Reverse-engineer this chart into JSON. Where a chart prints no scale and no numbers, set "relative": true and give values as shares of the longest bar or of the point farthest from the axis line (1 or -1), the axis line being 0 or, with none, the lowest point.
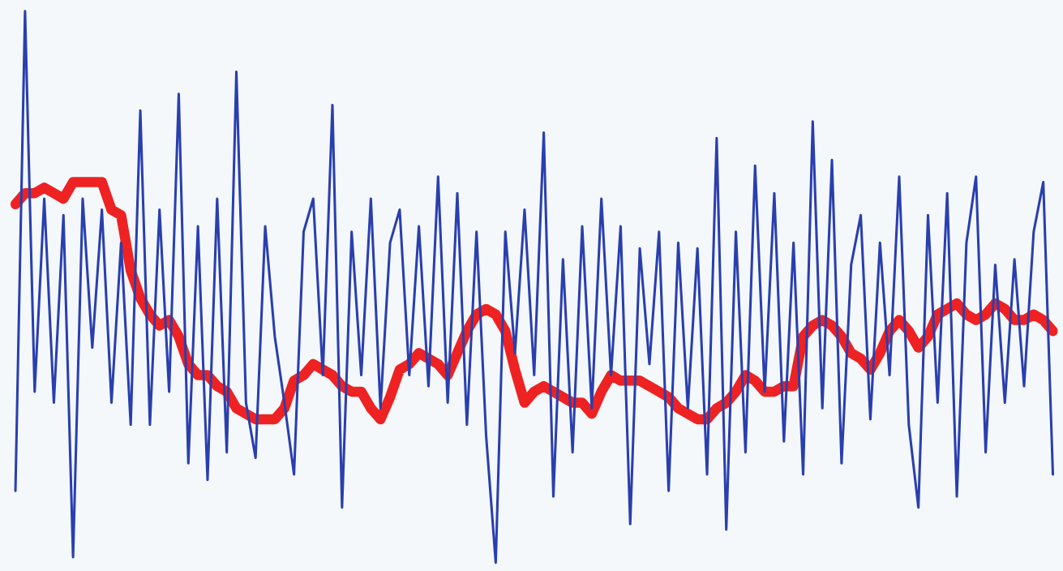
{
  "chart_data": {
    "type": "line",
    "relative": true,
    "legend": false,
    "grid": false,
    "marker": "none",
    "line_style": "solid",
    "categories": [
      null,
      null,
      null,
      null,
      null,
      null,
      null,
      null,
      null,
      null,
      null,
      null,
      null,
      null,
      null,
      null,
      null,
      null,
      null,
      null,
      null,
      null,
      null,
      null,
      null,
      null,
      null,
      null,
      null,
      null,
      null,
      null,
      null,
      null,
      null,
      null,
      null,
      null,
      null,
      null,
      null,
      null,
      null,
      null,
      null,
      null,
      null,
      null,
      null,
      null,
      null,
      null,
      null,
      null,
      null,
      null,
      null,
      null,
      null,
      null,
      null,
      null,
      null,
      null,
      null,
      null,
      null,
      null,
      null,
      null,
      null,
      null,
      null,
      null,
      null,
      null,
      null,
      null,
      null,
      null,
      null,
      null,
      null,
      null,
      null,
      null,
      null,
      null,
      null,
      null,
      null,
      null,
      null,
      null,
      null,
      null,
      null,
      null,
      null,
      null,
      null,
      null,
      null,
      null,
      null,
      null,
      null,
      null,
      null
    ],
    "series": [
      {
        "color": "#2a3fae",
        "values": [
          0.13,
          1.0,
          0.31,
          0.66,
          0.29,
          0.63,
          0.01,
          0.66,
          0.39,
          0.64,
          0.29,
          0.58,
          0.25,
          0.82,
          0.25,
          0.64,
          0.31,
          0.85,
          0.18,
          0.61,
          0.15,
          0.66,
          0.2,
          0.89,
          0.29,
          0.19,
          0.61,
          0.41,
          0.29,
          0.16,
          0.6,
          0.66,
          0.34,
          0.83,
          0.1,
          0.6,
          0.34,
          0.66,
          0.28,
          0.58,
          0.64,
          0.34,
          0.61,
          0.32,
          0.7,
          0.29,
          0.67,
          0.25,
          0.6,
          0.23,
          0.0,
          0.6,
          0.38,
          0.64,
          0.34,
          0.78,
          0.12,
          0.55,
          0.2,
          0.61,
          0.28,
          0.66,
          0.34,
          0.61,
          0.07,
          0.57,
          0.36,
          0.6,
          0.13,
          0.58,
          0.28,
          0.57,
          0.16,
          0.77,
          0.06,
          0.6,
          0.2,
          0.72,
          0.31,
          0.67,
          0.22,
          0.58,
          0.16,
          0.8,
          0.28,
          0.73,
          0.18,
          0.54,
          0.63,
          0.26,
          0.58,
          0.34,
          0.7,
          0.25,
          0.1,
          0.63,
          0.29,
          0.67,
          0.12,
          0.58,
          0.7,
          0.2,
          0.54,
          0.29,
          0.55,
          0.32,
          0.6,
          0.69,
          0.16
        ]
      },
      {
        "color": "#ee2222",
        "values": [
          0.65,
          0.67,
          0.67,
          0.68,
          0.67,
          0.66,
          0.69,
          0.69,
          0.69,
          0.69,
          0.64,
          0.63,
          0.53,
          0.48,
          0.45,
          0.43,
          0.44,
          0.41,
          0.36,
          0.34,
          0.34,
          0.32,
          0.31,
          0.28,
          0.27,
          0.26,
          0.26,
          0.26,
          0.28,
          0.33,
          0.34,
          0.36,
          0.35,
          0.34,
          0.32,
          0.31,
          0.31,
          0.28,
          0.26,
          0.3,
          0.35,
          0.36,
          0.38,
          0.37,
          0.36,
          0.34,
          0.38,
          0.42,
          0.45,
          0.46,
          0.45,
          0.42,
          0.35,
          0.29,
          0.31,
          0.32,
          0.31,
          0.3,
          0.29,
          0.29,
          0.27,
          0.31,
          0.34,
          0.33,
          0.33,
          0.33,
          0.32,
          0.31,
          0.3,
          0.28,
          0.27,
          0.26,
          0.26,
          0.28,
          0.29,
          0.31,
          0.34,
          0.33,
          0.31,
          0.31,
          0.32,
          0.32,
          0.41,
          0.43,
          0.44,
          0.43,
          0.41,
          0.38,
          0.37,
          0.35,
          0.38,
          0.42,
          0.44,
          0.42,
          0.39,
          0.41,
          0.45,
          0.46,
          0.47,
          0.45,
          0.44,
          0.45,
          0.47,
          0.46,
          0.44,
          0.44,
          0.45,
          0.44,
          0.42
        ]
      }
    ]
  }
}
